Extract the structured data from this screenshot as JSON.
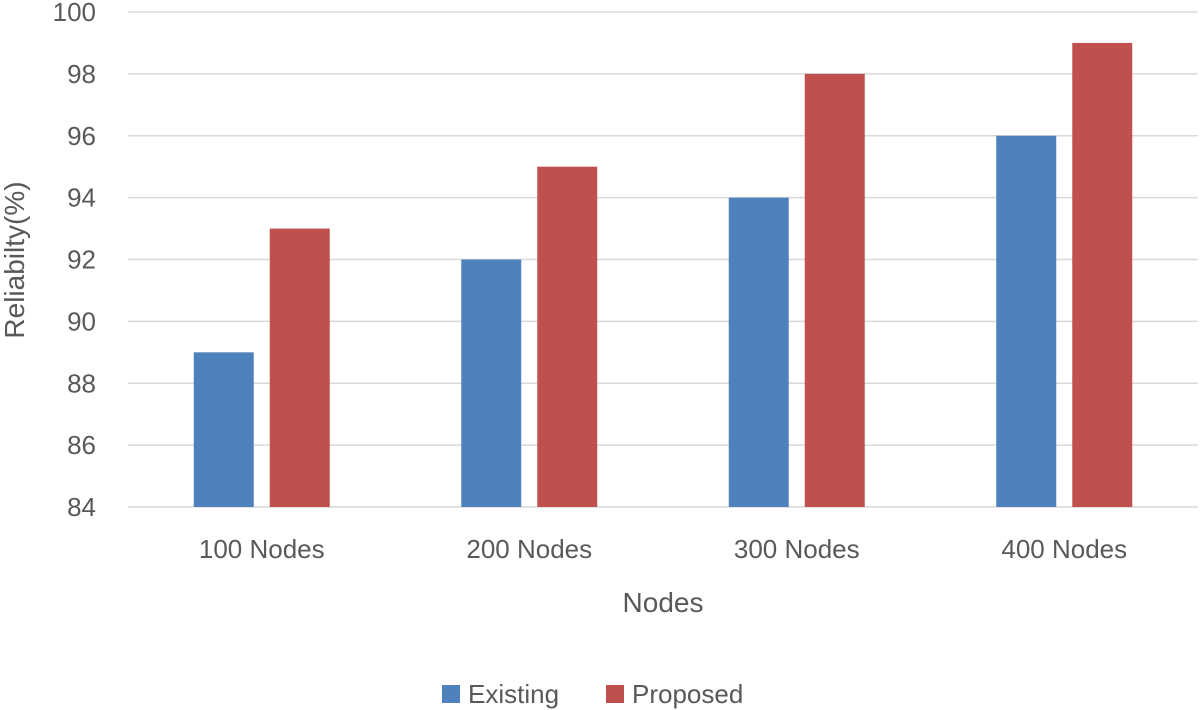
{
  "chart_data": {
    "type": "bar",
    "title": "",
    "xlabel": "Nodes",
    "ylabel": "Reliabilty(%)",
    "categories": [
      "100 Nodes",
      "200 Nodes",
      "300 Nodes",
      "400 Nodes"
    ],
    "series": [
      {
        "name": "Existing",
        "color": "#4f81bd",
        "values": [
          89,
          92,
          94,
          96
        ]
      },
      {
        "name": "Proposed",
        "color": "#c0504d",
        "values": [
          93,
          95,
          98,
          99
        ]
      }
    ],
    "ylim": [
      84,
      100
    ],
    "yticks": [
      84,
      86,
      88,
      90,
      92,
      94,
      96,
      98,
      100
    ],
    "grid": true,
    "legend_position": "bottom"
  }
}
